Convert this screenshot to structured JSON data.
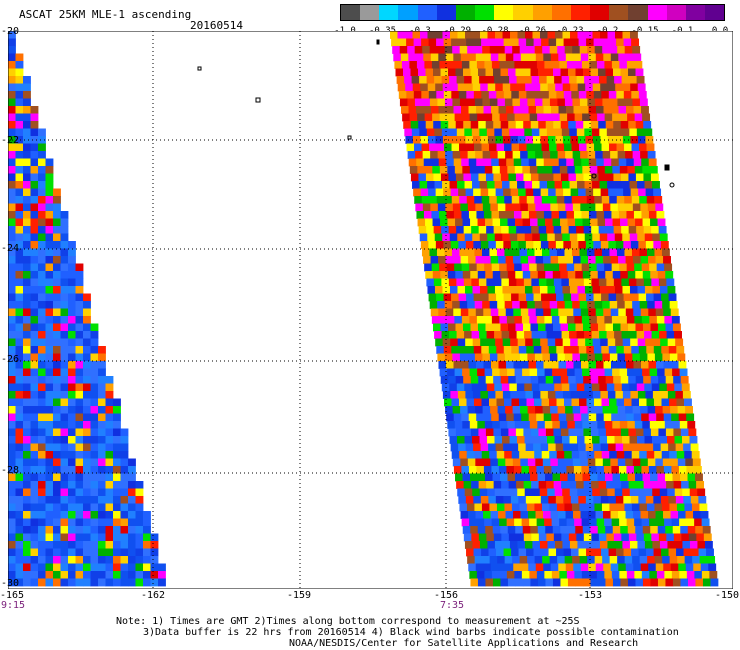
{
  "header": {
    "title": "ASCAT 25KM MLE-1 ascending",
    "date": "20160514"
  },
  "colorbar": {
    "ticks": [
      "-1.0",
      "-0.35",
      "-0.3",
      "-0.29",
      "-0.28",
      "-0.26",
      "-0.23",
      "-0.2",
      "-0.15",
      "-0.1",
      "0.0"
    ],
    "colors": [
      "#4d4d4d",
      "#9a9a9a",
      "#00d7ff",
      "#00a0ff",
      "#2060ff",
      "#1030e0",
      "#00b000",
      "#00e000",
      "#ffff00",
      "#ffd000",
      "#ffa000",
      "#ff7000",
      "#ff2000",
      "#e00000",
      "#a05020",
      "#704030",
      "#ff00ff",
      "#d000c0",
      "#8000a0",
      "#600090"
    ]
  },
  "axes": {
    "lat_labels": [
      "-20",
      "-22",
      "-24",
      "-26",
      "-28",
      "-30"
    ],
    "lon_labels": [
      "-165",
      "-162",
      "-159",
      "-156",
      "-153",
      "-150"
    ]
  },
  "times": [
    "9:15",
    "7:35"
  ],
  "notes": {
    "line1": "Note: 1) Times are GMT 2)Times along bottom correspond to measurement at ~25S",
    "line2": "3)Data buffer is 22 hrs from 20160514 4) Black wind barbs indicate possible contamination",
    "line3": "NOAA/NESDIS/Center for Satellite Applications and Research"
  },
  "palette": {
    "blue": [
      "#2060ff",
      "#1040e8",
      "#3070ff",
      "#1050f0",
      "#2080ff"
    ],
    "mixed": [
      "#ff2000",
      "#ffa000",
      "#ffff00",
      "#00b000",
      "#2060ff",
      "#ff7000",
      "#e00000",
      "#ffd000",
      "#00e000",
      "#a05020",
      "#ff00ff",
      "#1030e0"
    ],
    "warm": [
      "#ff2000",
      "#e00000",
      "#ffa000",
      "#ff7000",
      "#a05020",
      "#ff00ff",
      "#704030",
      "#ffd000",
      "#ff00ff"
    ]
  }
}
